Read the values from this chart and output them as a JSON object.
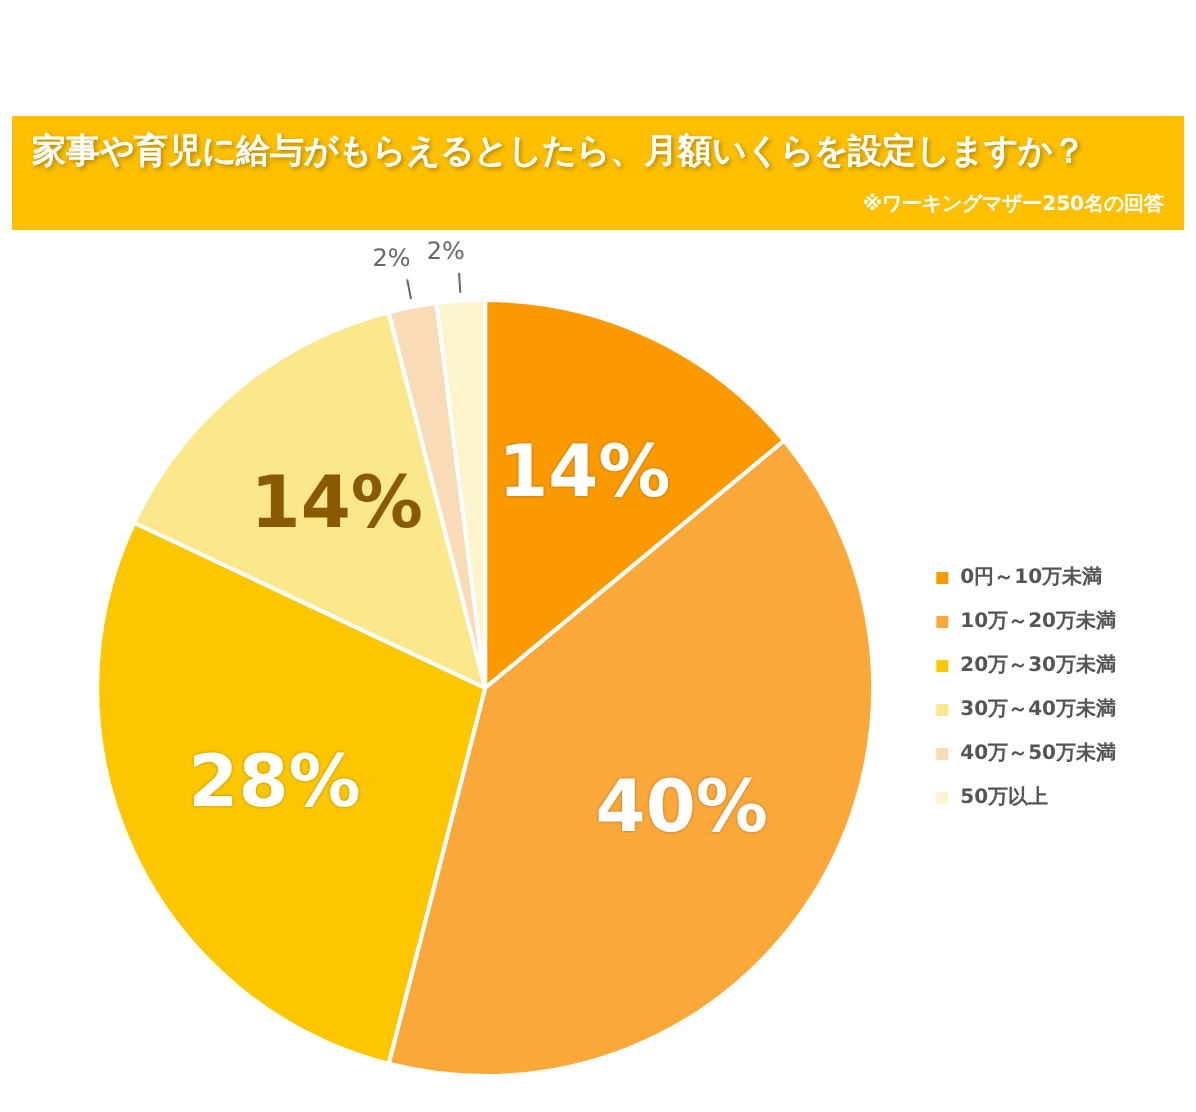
{
  "chart_data": {
    "type": "pie",
    "title": "家事や育児に給与がもらえるとしたら、月額いくらを設定しますか？",
    "subtitle": "※ワーキングマザー250名の回答",
    "categories": [
      "0円～10万未満",
      "10万～20万未満",
      "20万～30万未満",
      "30万～40万未満",
      "40万～50万未満",
      "50万以上"
    ],
    "values": [
      14,
      40,
      28,
      14,
      2,
      2
    ],
    "value_labels": [
      "14%",
      "40%",
      "28%",
      "14%",
      "2%",
      "2%"
    ],
    "colors": [
      "#fb9a00",
      "#fba83a",
      "#fcc600",
      "#fbe78c",
      "#fadbb8",
      "#fdf3cc"
    ],
    "legend": "right"
  }
}
